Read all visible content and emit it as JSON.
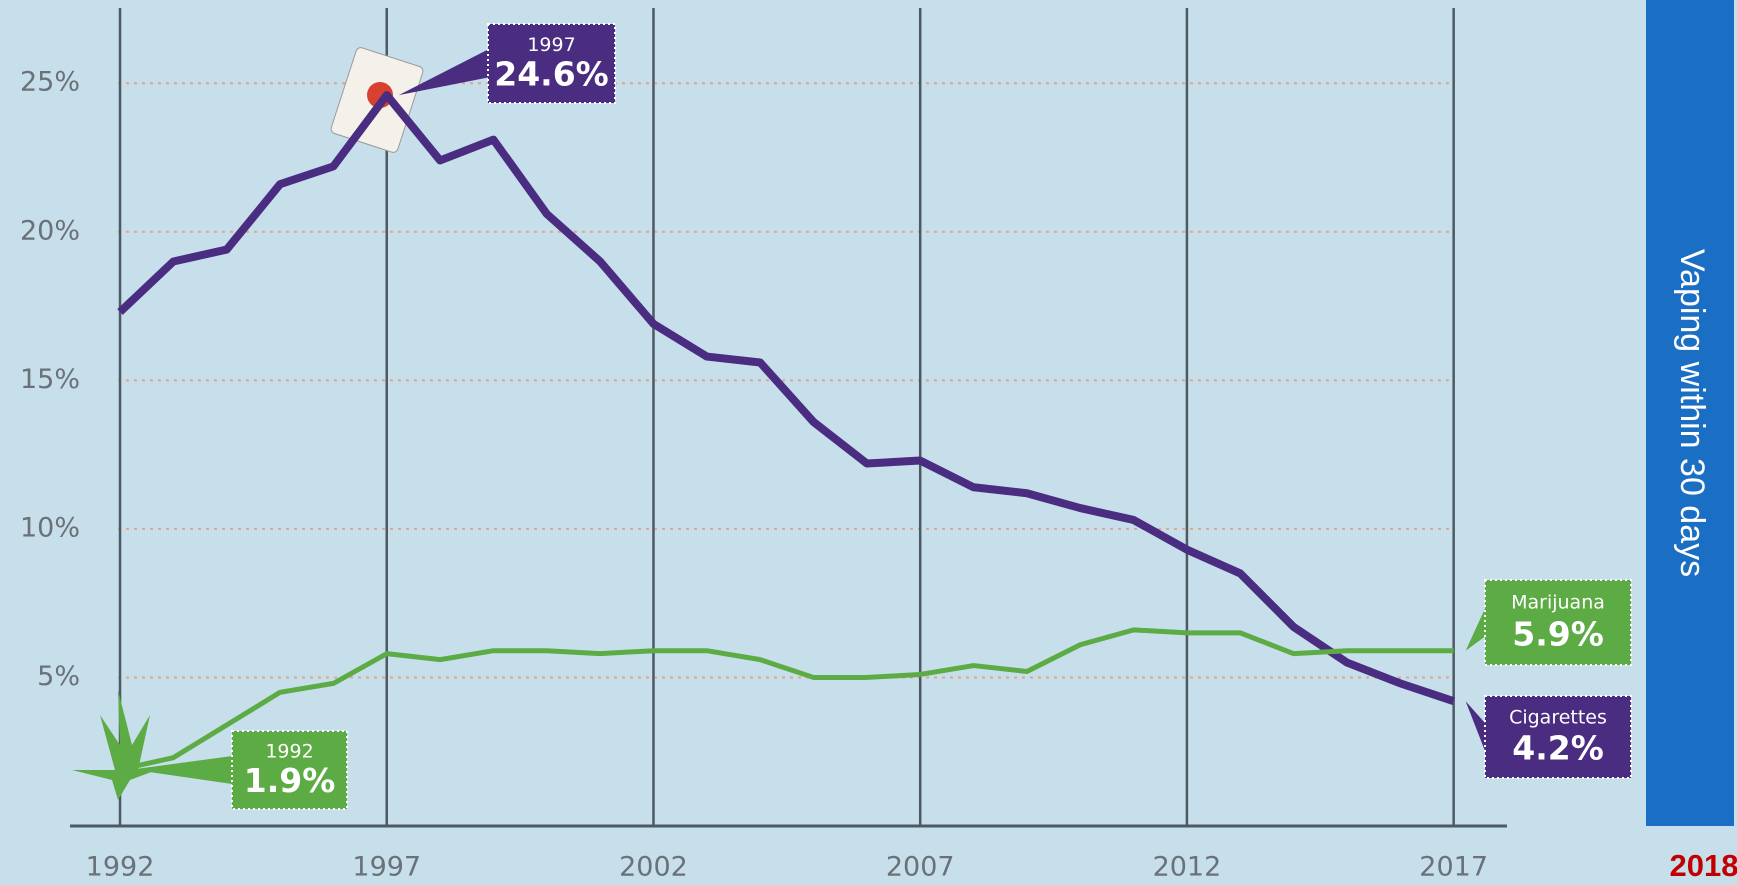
{
  "chart_data": {
    "type": "line",
    "x": [
      1992,
      1993,
      1994,
      1995,
      1996,
      1997,
      1998,
      1999,
      2000,
      2001,
      2002,
      2003,
      2004,
      2005,
      2006,
      2007,
      2008,
      2009,
      2010,
      2011,
      2012,
      2013,
      2014,
      2015,
      2016,
      2017
    ],
    "series": [
      {
        "name": "Cigarettes",
        "color": "#4a2c80",
        "values": [
          17.3,
          19.0,
          19.4,
          21.6,
          22.2,
          24.6,
          22.4,
          23.1,
          20.6,
          19.0,
          16.9,
          15.8,
          15.6,
          13.6,
          12.2,
          12.3,
          11.4,
          11.2,
          10.7,
          10.3,
          9.3,
          8.5,
          6.7,
          5.5,
          4.8,
          4.2
        ],
        "value_labels": [
          null,
          null,
          null,
          null,
          null,
          "24.6%",
          null,
          null,
          null,
          null,
          null,
          null,
          null,
          null,
          null,
          null,
          null,
          null,
          null,
          null,
          null,
          null,
          null,
          null,
          null,
          "4.2%"
        ]
      },
      {
        "name": "Marijuana",
        "color": "#5cab45",
        "values": [
          1.9,
          2.3,
          3.4,
          4.5,
          4.8,
          5.8,
          5.6,
          5.9,
          5.9,
          5.8,
          5.9,
          5.9,
          5.6,
          5.0,
          5.0,
          5.1,
          5.4,
          5.2,
          6.1,
          6.6,
          6.5,
          6.5,
          5.8,
          5.9,
          5.9,
          5.9
        ],
        "value_labels": [
          "1.9%",
          null,
          null,
          null,
          null,
          null,
          null,
          null,
          null,
          null,
          null,
          null,
          null,
          null,
          null,
          null,
          null,
          null,
          null,
          null,
          null,
          null,
          null,
          null,
          null,
          "5.9%"
        ]
      }
    ],
    "xlim": [
      1989.75,
      2018
    ],
    "xticks": [
      1992,
      1997,
      2002,
      2007,
      2012,
      2017
    ],
    "ylim": [
      0,
      27.8
    ],
    "yticks": [
      {
        "value": 5,
        "label": "5%"
      },
      {
        "value": 10,
        "label": "10%"
      },
      {
        "value": 15,
        "label": "15%"
      },
      {
        "value": 20,
        "label": "20%"
      },
      {
        "value": 25,
        "label": "25%"
      }
    ],
    "grid": true
  },
  "sidebar": {
    "title": "Vaping within 30 days",
    "year": "2018"
  }
}
